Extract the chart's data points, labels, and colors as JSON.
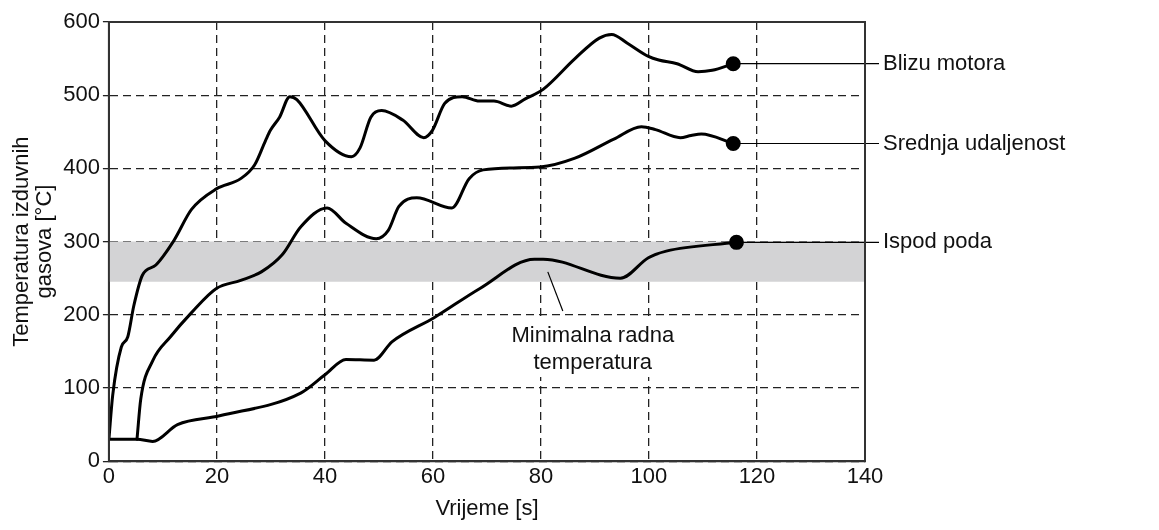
{
  "chart_data": {
    "type": "line",
    "xlabel": "Vrijeme [s]",
    "ylabel": "Temperatura izduvnih\ngasova [°C]",
    "xlim": [
      0,
      140
    ],
    "xticks": [
      0,
      20,
      40,
      60,
      80,
      100,
      120,
      140
    ],
    "ylim": [
      0,
      600
    ],
    "yticks": [
      0,
      100,
      200,
      300,
      400,
      500,
      600
    ],
    "grid": true,
    "line_style": "solid",
    "bands": [
      {
        "axis": "y",
        "from": 245,
        "to": 300,
        "color": "#d3d3d5"
      }
    ],
    "annotations": [
      "Minimalna radna\ntemperatura"
    ],
    "series": [
      {
        "name": "Blizu motora",
        "color": "#000000",
        "x": [
          0,
          0.7,
          2.3,
          3.5,
          4.6,
          6.2,
          8.7,
          12,
          15.3,
          19.9,
          24.4,
          27,
          29,
          29.9,
          31.6,
          33.5,
          34.8,
          40,
          44.9,
          46.5,
          48.5,
          50.5,
          54.4,
          58.3,
          59.9,
          62.2,
          65.4,
          68.6,
          71.3,
          74.5,
          77.1,
          80.4,
          86.3,
          90.8,
          93.1,
          96,
          99.9,
          101.8,
          105.2,
          109.1,
          111.7,
          115.6
        ],
        "values": [
          30,
          90,
          156,
          170,
          212,
          254,
          268,
          301,
          344,
          372,
          386,
          405,
          438,
          452,
          470,
          498,
          494,
          438,
          416,
          428,
          470,
          479,
          466,
          442,
          452,
          489,
          498,
          492,
          492,
          485,
          495,
          508,
          550,
          578,
          583,
          571,
          553,
          548,
          543,
          532,
          534,
          543
        ]
      },
      {
        "name": "Srednja udaljenost",
        "color": "#000000",
        "x": [
          5.2,
          5.9,
          8.1,
          11.4,
          15.3,
          19.9,
          24.4,
          28.3,
          32.2,
          35.5,
          40.4,
          43.9,
          49.5,
          51.7,
          53.7,
          57,
          63.5,
          66.7,
          69.3,
          79.8,
          86.3,
          93.5,
          98.6,
          101.2,
          105.8,
          107.8,
          109.7,
          115.6
        ],
        "values": [
          30,
          85,
          137,
          170,
          203,
          236,
          247,
          259,
          283,
          320,
          346,
          325,
          304,
          315,
          348,
          360,
          346,
          386,
          398,
          402,
          414,
          440,
          457,
          453,
          442,
          445,
          447,
          434
        ]
      },
      {
        "name": "Ispod poda",
        "color": "#000000",
        "x": [
          0,
          5.2,
          8.1,
          12.7,
          20.5,
          35.5,
          40,
          43.9,
          49.1,
          52.4,
          60.2,
          68.7,
          78.8,
          80.4,
          94.7,
          99.9,
          103.2,
          116.2
        ],
        "values": [
          30,
          30,
          27,
          50,
          62,
          93,
          118,
          139,
          138,
          163,
          196,
          236,
          276,
          276,
          250,
          278,
          287,
          299
        ]
      }
    ]
  }
}
